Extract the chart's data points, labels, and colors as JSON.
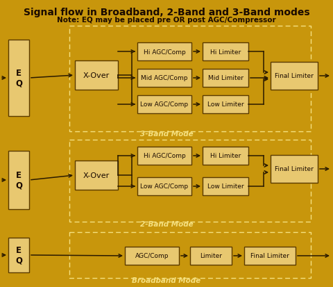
{
  "title": "Signal flow in Broadband, 2-Band and 3-Band modes",
  "subtitle": "Note: EQ may be placed pre OR post AGC/Compressor",
  "bg_color": "#C8960C",
  "box_fill_light": "#E8C870",
  "box_stroke": "#5a3a00",
  "dash_color": "#F5E080",
  "text_color": "#1a0a00",
  "arrow_color": "#2a1a00",
  "label_3band": "3-Band Mode",
  "label_2band": "2-Band Mode",
  "label_broadband": "Broadband Mode",
  "title_color": "#1a0a00"
}
